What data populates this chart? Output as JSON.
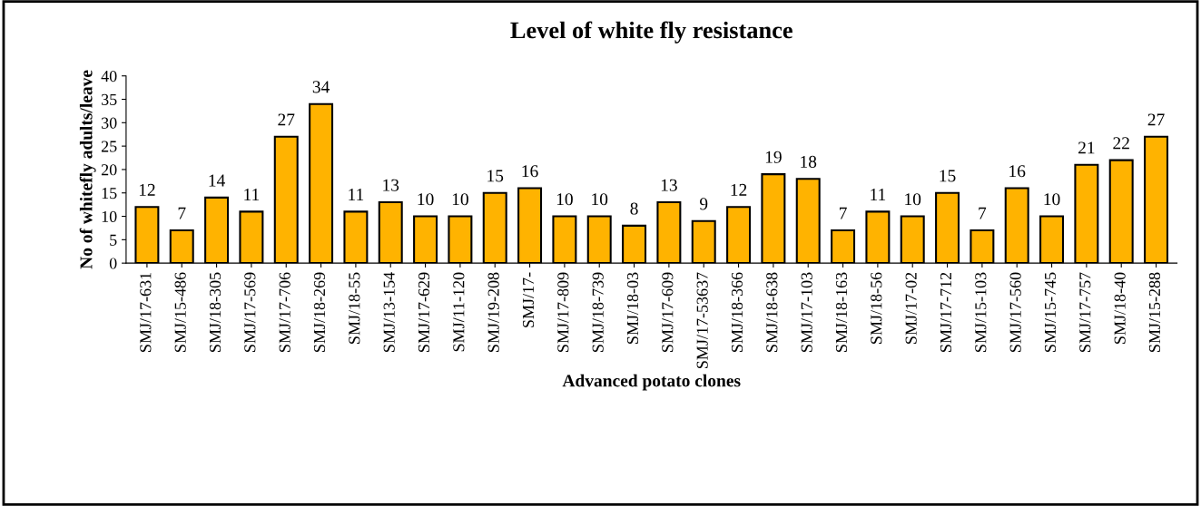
{
  "chart_data": {
    "type": "bar",
    "title": "Level of white fly resistance",
    "xlabel": "Advanced potato clones",
    "ylabel": "No of whitefly adults/leave",
    "categories": [
      "SMJ/17-631",
      "SMJ/15-486",
      "SMJ/18-305",
      "SMJ/17-569",
      "SMJ/17-706",
      "SMJ/18-269",
      "SMJ/18-55",
      "SMJ/13-154",
      "SMJ/17-629",
      "SMJ/11-120",
      "SMJ/19-208",
      "SMJ/17-",
      "SMJ/17-809",
      "SMJ/18-739",
      "SMJ/18-03",
      "SMJ/17-609",
      "SMJ/17-53637",
      "SMJ/18-366",
      "SMJ/18-638",
      "SMJ/17-103",
      "SMJ/18-163",
      "SMJ/18-56",
      "SMJ/17-02",
      "SMJ/17-712",
      "SMJ/15-103",
      "SMJ/17-560",
      "SMJ/15-745",
      "SMJ/17-757",
      "SMJ/18-40",
      "SMJ/15-288"
    ],
    "values": [
      12,
      7,
      14,
      11,
      27,
      34,
      11,
      13,
      10,
      10,
      15,
      16,
      10,
      10,
      8,
      13,
      9,
      12,
      19,
      18,
      7,
      11,
      10,
      15,
      7,
      16,
      10,
      21,
      22,
      27
    ],
    "color": "#ffb300",
    "data_labels": true,
    "ylim": [
      0,
      40
    ],
    "yticks": [
      0,
      5,
      10,
      15,
      20,
      25,
      30,
      35,
      40
    ],
    "grid": false,
    "legend": false
  }
}
